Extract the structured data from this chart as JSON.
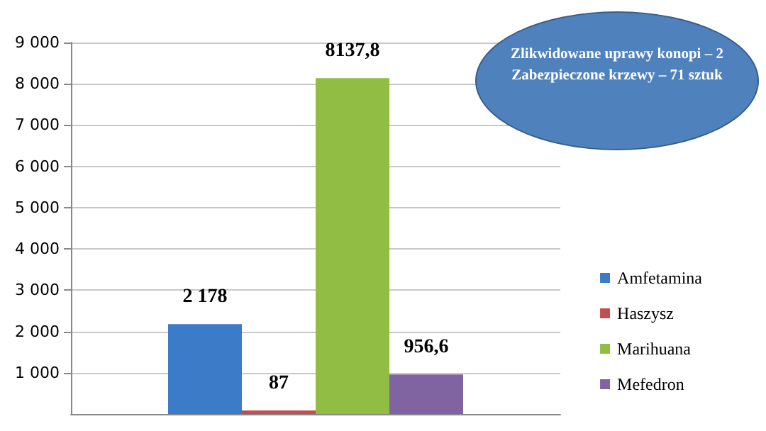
{
  "chart_data": {
    "type": "bar",
    "categories": [
      null
    ],
    "series": [
      {
        "name": "Amfetamina",
        "color": "#3c7bc8",
        "values": [
          2178
        ],
        "value_labels": [
          "2 178"
        ]
      },
      {
        "name": "Haszysz",
        "color": "#c0504d",
        "values": [
          87
        ],
        "value_labels": [
          "87"
        ]
      },
      {
        "name": "Marihuana",
        "color": "#92bd45",
        "values": [
          8137.8
        ],
        "value_labels": [
          "8137,8"
        ]
      },
      {
        "name": "Mefedron",
        "color": "#8064a2",
        "values": [
          956.6
        ],
        "value_labels": [
          "956,6"
        ]
      }
    ],
    "ylim": [
      0,
      9000
    ],
    "yticks": [
      {
        "value": 1000,
        "label": "1 000"
      },
      {
        "value": 2000,
        "label": "2 000"
      },
      {
        "value": 3000,
        "label": "3 000"
      },
      {
        "value": 4000,
        "label": "4 000"
      },
      {
        "value": 5000,
        "label": "5 000"
      },
      {
        "value": 6000,
        "label": "6 000"
      },
      {
        "value": 7000,
        "label": "7 000"
      },
      {
        "value": 8000,
        "label": "8 000"
      },
      {
        "value": 9000,
        "label": "9 000"
      }
    ],
    "grid": "y",
    "legend": "right",
    "annotations": [
      "Zlikwidowane uprawy konopi – 2",
      "Zabezpieczone krzewy – 71 sztuk"
    ]
  }
}
